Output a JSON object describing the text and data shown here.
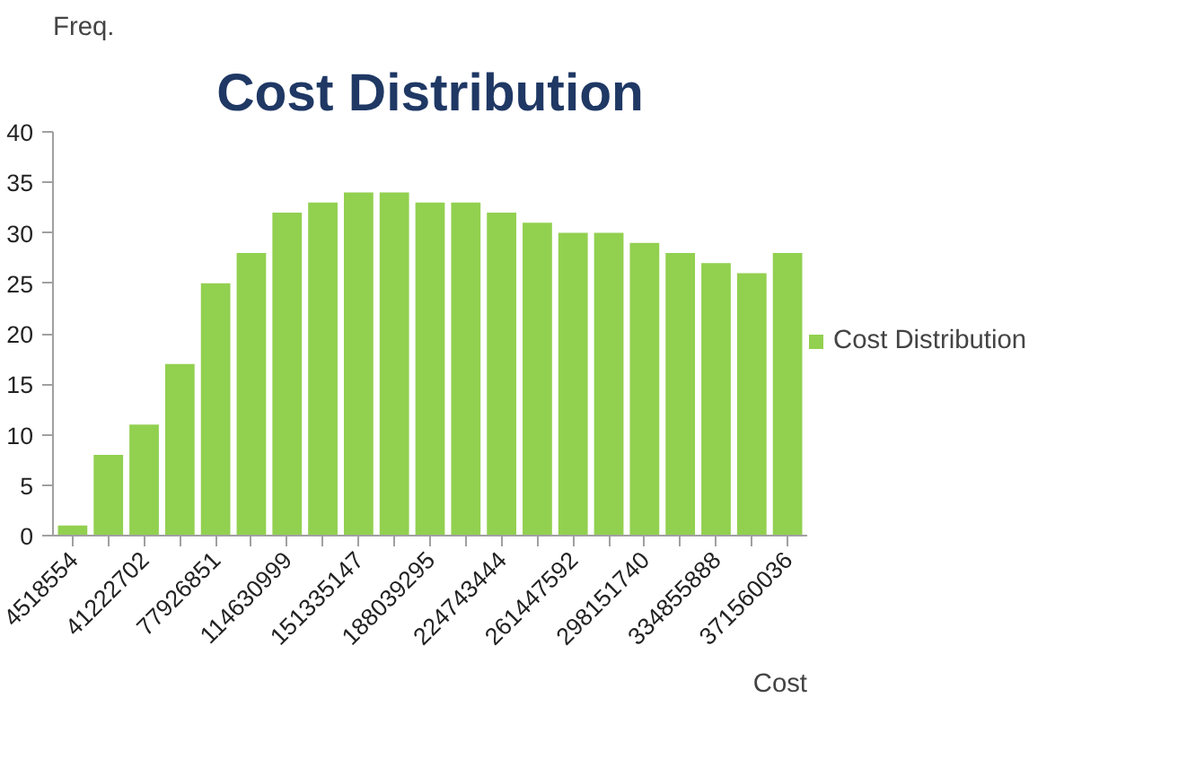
{
  "chart_data": {
    "type": "bar",
    "title": "Cost Distribution",
    "xlabel": "Cost",
    "ylabel": "Freq.",
    "categories": [
      "4518554",
      null,
      "41222702",
      null,
      "77926851",
      null,
      "114630999",
      null,
      "151335147",
      null,
      "188039295",
      null,
      "224743444",
      null,
      "261447592",
      null,
      "298151740",
      null,
      "334855888",
      null,
      "371560036"
    ],
    "series": [
      {
        "name": "Cost Distribution",
        "color": "#92d050",
        "values": [
          1,
          8,
          11,
          17,
          25,
          28,
          32,
          33,
          34,
          34,
          33,
          33,
          32,
          31,
          30,
          30,
          29,
          28,
          27,
          26,
          28
        ]
      }
    ],
    "ylim": [
      0,
      40
    ],
    "yticks": [
      0,
      5,
      10,
      15,
      20,
      25,
      30,
      35,
      40
    ],
    "grid": false,
    "legend": "right"
  }
}
